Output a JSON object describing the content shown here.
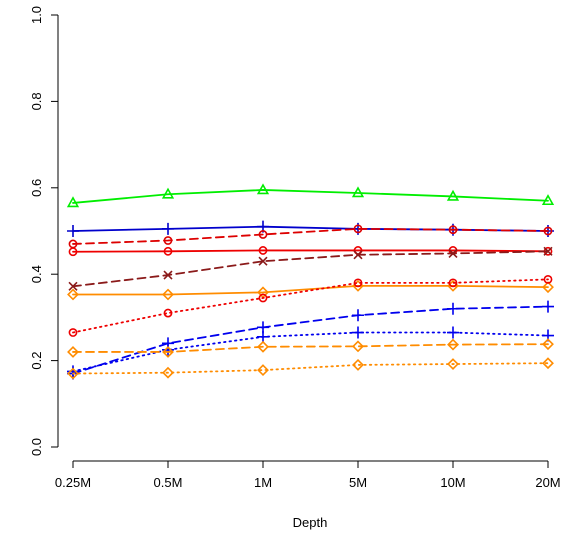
{
  "chart_data": {
    "type": "line",
    "title": "",
    "xlabel": "Depth",
    "ylabel": "",
    "categories": [
      "0.25M",
      "0.5M",
      "1M",
      "5M",
      "10M",
      "20M"
    ],
    "ylim": [
      0,
      1
    ],
    "y_ticks": [
      "0.0",
      "0.2",
      "0.4",
      "0.6",
      "0.8",
      "1.0"
    ],
    "grid": false,
    "legend": "none",
    "series": [
      {
        "values": [
          0.565,
          0.585,
          0.595,
          0.588,
          0.58,
          0.57
        ],
        "color": "#00ee00",
        "dash": "solid",
        "marker": "triangle"
      },
      {
        "values": [
          0.5,
          0.505,
          0.51,
          0.505,
          0.503,
          0.5
        ],
        "color": "#0000cc",
        "dash": "solid",
        "marker": "plus"
      },
      {
        "values": [
          0.47,
          0.478,
          0.492,
          0.505,
          0.503,
          0.5
        ],
        "color": "#dd0000",
        "dash": "dashed",
        "marker": "circle"
      },
      {
        "values": [
          0.452,
          0.453,
          0.455,
          0.455,
          0.455,
          0.453
        ],
        "color": "#ee0000",
        "dash": "solid",
        "marker": "circle"
      },
      {
        "values": [
          0.372,
          0.398,
          0.43,
          0.445,
          0.448,
          0.453
        ],
        "color": "#8b1a1a",
        "dash": "dashed",
        "marker": "x"
      },
      {
        "values": [
          0.353,
          0.353,
          0.358,
          0.373,
          0.373,
          0.37
        ],
        "color": "#ff8c00",
        "dash": "solid",
        "marker": "diamond"
      },
      {
        "values": [
          0.265,
          0.31,
          0.345,
          0.38,
          0.38,
          0.388
        ],
        "color": "#ee0000",
        "dash": "dotted",
        "marker": "circle"
      },
      {
        "values": [
          0.17,
          0.24,
          0.277,
          0.305,
          0.32,
          0.325
        ],
        "color": "#0000ee",
        "dash": "dashed",
        "marker": "plus"
      },
      {
        "values": [
          0.175,
          0.225,
          0.255,
          0.265,
          0.265,
          0.258
        ],
        "color": "#0000ee",
        "dash": "dotted",
        "marker": "plus"
      },
      {
        "values": [
          0.22,
          0.22,
          0.232,
          0.233,
          0.237,
          0.238
        ],
        "color": "#ff8c00",
        "dash": "dashed",
        "marker": "diamond"
      },
      {
        "values": [
          0.17,
          0.172,
          0.178,
          0.19,
          0.192,
          0.194
        ],
        "color": "#ff8c00",
        "dash": "dotted",
        "marker": "diamond"
      }
    ]
  }
}
